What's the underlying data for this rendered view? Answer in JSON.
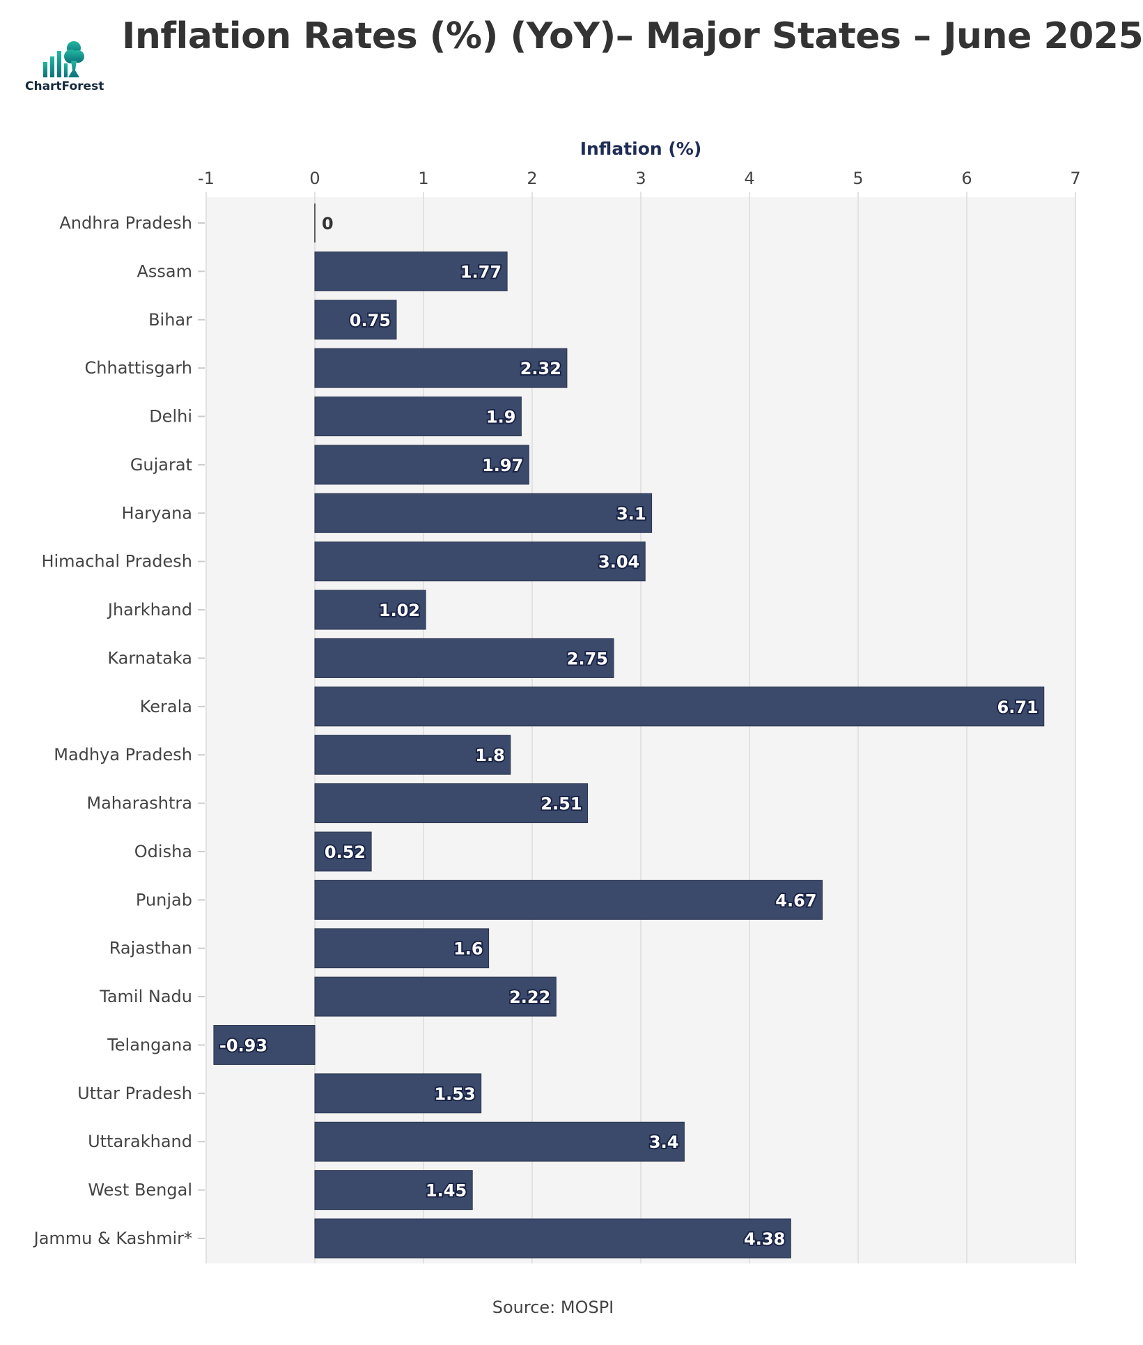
{
  "title": "Inflation Rates (%) (YoY)– Major States – June 2025",
  "logo": {
    "text": "ChartForest",
    "color": "#1aa39a"
  },
  "source": "Source: MOSPI",
  "colors": {
    "bar": "#3b4a6b",
    "plot_bg": "#f4f4f4",
    "grid": "#e2e2e2",
    "axis_title": "#1f2d55"
  },
  "chart_data": {
    "type": "bar",
    "orientation": "horizontal",
    "title": "Inflation Rates (%) (YoY)– Major States – June 2025",
    "xlabel": "Inflation (%)",
    "ylabel": "",
    "xlim": [
      -1,
      7
    ],
    "xticks": [
      -1,
      0,
      1,
      2,
      3,
      4,
      5,
      6,
      7
    ],
    "x_axis_position": "top",
    "grid": true,
    "categories": [
      "Andhra Pradesh",
      "Assam",
      "Bihar",
      "Chhattisgarh",
      "Delhi",
      "Gujarat",
      "Haryana",
      "Himachal Pradesh",
      "Jharkhand",
      "Karnataka",
      "Kerala",
      "Madhya Pradesh",
      "Maharashtra",
      "Odisha",
      "Punjab",
      "Rajasthan",
      "Tamil Nadu",
      "Telangana",
      "Uttar Pradesh",
      "Uttarakhand",
      "West Bengal",
      "Jammu & Kashmir*"
    ],
    "values": [
      0,
      1.77,
      0.75,
      2.32,
      1.9,
      1.97,
      3.1,
      3.04,
      1.02,
      2.75,
      6.71,
      1.8,
      2.51,
      0.52,
      4.67,
      1.6,
      2.22,
      -0.93,
      1.53,
      3.4,
      1.45,
      4.38
    ]
  }
}
